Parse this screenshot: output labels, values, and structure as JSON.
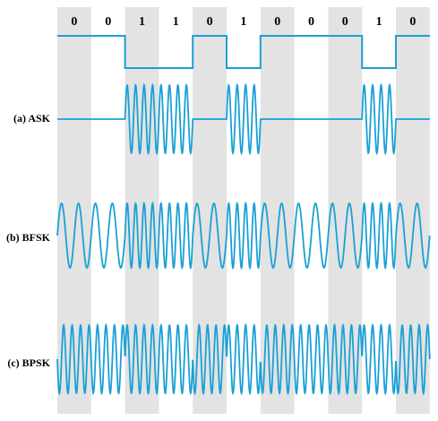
{
  "bits": [
    "0",
    "0",
    "1",
    "1",
    "0",
    "1",
    "0",
    "0",
    "0",
    "1",
    "0"
  ],
  "rows": [
    {
      "key": "ask",
      "label": "(a) ASK"
    },
    {
      "key": "bfsk",
      "label": "(b) BFSK"
    },
    {
      "key": "bpsk",
      "label": "(c) BPSK"
    }
  ],
  "colors": {
    "signal": "#1aa0d6",
    "band": "#e3e3e3",
    "text": "#000000",
    "background": "#ffffff"
  }
}
